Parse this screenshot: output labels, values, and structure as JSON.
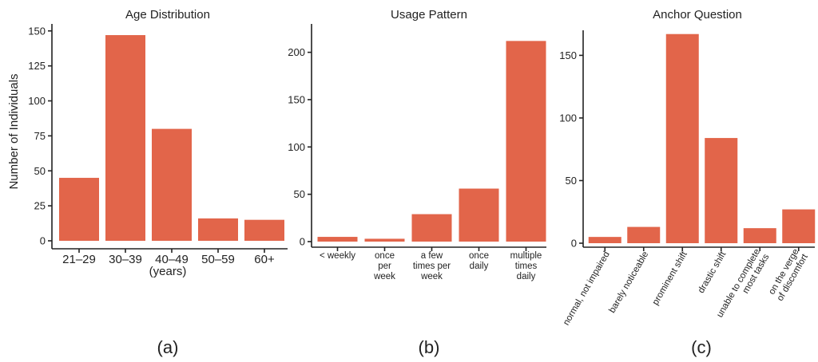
{
  "colors": {
    "bar": "#e2654a",
    "axis": "#222222"
  },
  "chart_data": [
    {
      "type": "bar",
      "title": "Age Distribution",
      "ylabel": "Number of Individuals",
      "xlabel": "(years)",
      "panel_label": "(a)",
      "categories": [
        "21–29",
        "30–39",
        "40–49",
        "50–59",
        "60+"
      ],
      "values": [
        45,
        147,
        80,
        16,
        15
      ],
      "ylim": [
        0,
        155
      ],
      "yticks": [
        0,
        25,
        50,
        75,
        100,
        125,
        150
      ],
      "grid": false
    },
    {
      "type": "bar",
      "title": "Usage Pattern",
      "panel_label": "(b)",
      "categories": [
        "< weekly",
        "once per week",
        "a few times per week",
        "once daily",
        "multiple times daily"
      ],
      "category_lines": [
        [
          "< weekly"
        ],
        [
          "once",
          "per",
          "week"
        ],
        [
          "a few",
          "times per",
          "week"
        ],
        [
          "once",
          "daily"
        ],
        [
          "multiple",
          "times",
          "daily"
        ]
      ],
      "values": [
        5,
        3,
        29,
        56,
        212
      ],
      "ylim": [
        0,
        230
      ],
      "yticks": [
        0,
        50,
        100,
        150,
        200
      ],
      "grid": false
    },
    {
      "type": "bar",
      "title": "Anchor Question",
      "panel_label": "(c)",
      "categories": [
        "normal, not impaired",
        "barely noticeable",
        "prominent shift",
        "drastic shift",
        "unable to complete most tasks",
        "on the verge of discomfort"
      ],
      "category_lines": [
        [
          "normal, not impaired"
        ],
        [
          "barely noticeable"
        ],
        [
          "prominent shift"
        ],
        [
          "drastic shift"
        ],
        [
          "unable to complete",
          "most tasks"
        ],
        [
          "on the verge",
          "of discomfort"
        ]
      ],
      "values": [
        5,
        13,
        167,
        84,
        12,
        27
      ],
      "ylim": [
        0,
        170
      ],
      "yticks": [
        0,
        50,
        100,
        150
      ],
      "grid": false
    }
  ]
}
